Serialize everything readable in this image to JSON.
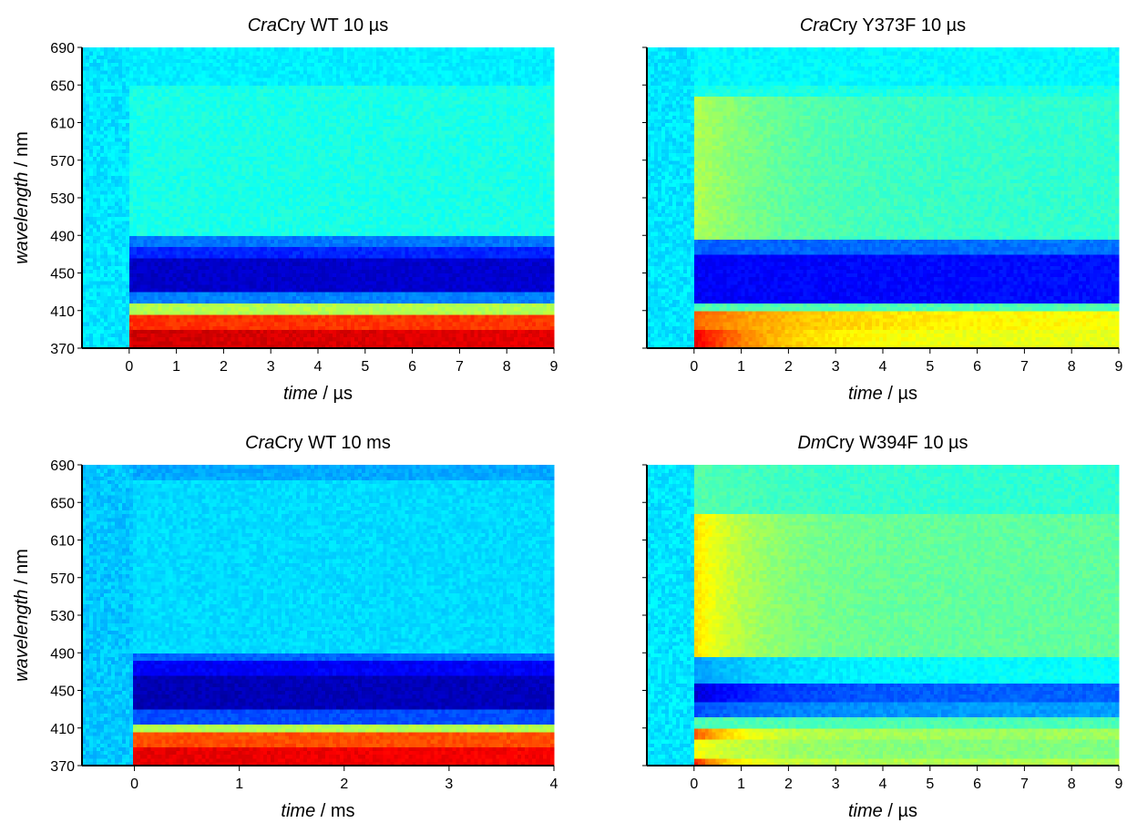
{
  "chart_data": [
    {
      "type": "heatmap",
      "title": {
        "italic": "Cra",
        "rest": "Cry WT 10 µs"
      },
      "xlabel": {
        "italic": "time",
        "rest": " / µs"
      },
      "ylabel": {
        "italic": "wavelength",
        "rest": " / nm"
      },
      "xlim": [
        -1,
        9
      ],
      "ylim": [
        370,
        690
      ],
      "xticks": [
        0,
        1,
        2,
        3,
        4,
        5,
        6,
        7,
        8,
        9
      ],
      "yticks": [
        370,
        410,
        450,
        490,
        530,
        570,
        610,
        650,
        690
      ],
      "show_yaxis_labels": true,
      "colormap": "jet",
      "time_zero": 0,
      "pre_zero_level": 0.35,
      "background_level": 0.4,
      "bands": [
        {
          "from": 370,
          "to": 391,
          "start_level": 0.92,
          "end_level": 0.9,
          "decay": 0
        },
        {
          "from": 391,
          "to": 408,
          "start_level": 0.83,
          "end_level": 0.82,
          "decay": 0
        },
        {
          "from": 408,
          "to": 418,
          "start_level": 0.55,
          "end_level": 0.55,
          "decay": 0
        },
        {
          "from": 418,
          "to": 430,
          "start_level": 0.25,
          "end_level": 0.25,
          "decay": 0
        },
        {
          "from": 430,
          "to": 465,
          "start_level": 0.07,
          "end_level": 0.08,
          "decay": 0
        },
        {
          "from": 465,
          "to": 480,
          "start_level": 0.16,
          "end_level": 0.16,
          "decay": 0
        },
        {
          "from": 480,
          "to": 492,
          "start_level": 0.24,
          "end_level": 0.24,
          "decay": 0
        },
        {
          "from": 650,
          "to": 690,
          "start_level": 0.36,
          "end_level": 0.36,
          "decay": 0
        }
      ]
    },
    {
      "type": "heatmap",
      "title": {
        "italic": "Cra",
        "rest": "Cry Y373F 10 µs"
      },
      "xlabel": {
        "italic": "time",
        "rest": " / µs"
      },
      "ylabel": {
        "italic": "",
        "rest": ""
      },
      "xlim": [
        -1,
        9
      ],
      "ylim": [
        370,
        690
      ],
      "xticks": [
        0,
        1,
        2,
        3,
        4,
        5,
        6,
        7,
        8,
        9
      ],
      "yticks": [
        370,
        410,
        450,
        490,
        530,
        570,
        610,
        650,
        690
      ],
      "show_yaxis_labels": false,
      "colormap": "jet",
      "time_zero": 0,
      "pre_zero_level": 0.35,
      "background_level": 0.4,
      "bands": [
        {
          "from": 370,
          "to": 390,
          "start_level": 0.9,
          "end_level": 0.6,
          "decay": 1.5
        },
        {
          "from": 390,
          "to": 410,
          "start_level": 0.78,
          "end_level": 0.62,
          "decay": 2.5
        },
        {
          "from": 410,
          "to": 420,
          "start_level": 0.45,
          "end_level": 0.45,
          "decay": 0
        },
        {
          "from": 420,
          "to": 470,
          "start_level": 0.12,
          "end_level": 0.14,
          "decay": 0
        },
        {
          "from": 470,
          "to": 487,
          "start_level": 0.22,
          "end_level": 0.24,
          "decay": 0
        },
        {
          "from": 487,
          "to": 640,
          "start_level": 0.55,
          "end_level": 0.42,
          "decay": 2.0
        },
        {
          "from": 650,
          "to": 690,
          "start_level": 0.37,
          "end_level": 0.37,
          "decay": 0
        }
      ]
    },
    {
      "type": "heatmap",
      "title": {
        "italic": "Cra",
        "rest": "Cry WT 10 ms"
      },
      "xlabel": {
        "italic": "time",
        "rest": " / ms"
      },
      "ylabel": {
        "italic": "wavelength",
        "rest": " / nm"
      },
      "xlim": [
        -0.5,
        4
      ],
      "ylim": [
        370,
        690
      ],
      "xticks": [
        0,
        1,
        2,
        3,
        4
      ],
      "yticks": [
        370,
        410,
        450,
        490,
        530,
        570,
        610,
        650,
        690
      ],
      "show_yaxis_labels": true,
      "colormap": "jet",
      "time_zero": 0,
      "pre_zero_level": 0.32,
      "background_level": 0.34,
      "bands": [
        {
          "from": 370,
          "to": 391,
          "start_level": 0.9,
          "end_level": 0.88,
          "decay": 0
        },
        {
          "from": 391,
          "to": 406,
          "start_level": 0.8,
          "end_level": 0.8,
          "decay": 0
        },
        {
          "from": 406,
          "to": 416,
          "start_level": 0.55,
          "end_level": 0.55,
          "decay": 0
        },
        {
          "from": 416,
          "to": 432,
          "start_level": 0.2,
          "end_level": 0.2,
          "decay": 0
        },
        {
          "from": 432,
          "to": 465,
          "start_level": 0.05,
          "end_level": 0.06,
          "decay": 0
        },
        {
          "from": 465,
          "to": 482,
          "start_level": 0.12,
          "end_level": 0.12,
          "decay": 0
        },
        {
          "from": 482,
          "to": 492,
          "start_level": 0.22,
          "end_level": 0.22,
          "decay": 0
        },
        {
          "from": 675,
          "to": 690,
          "start_level": 0.29,
          "end_level": 0.29,
          "decay": 0
        }
      ]
    },
    {
      "type": "heatmap",
      "title": {
        "italic": "Dm",
        "rest": "Cry W394F 10 µs"
      },
      "xlabel": {
        "italic": "time",
        "rest": " / µs"
      },
      "ylabel": {
        "italic": "",
        "rest": ""
      },
      "xlim": [
        -1,
        9
      ],
      "ylim": [
        370,
        690
      ],
      "xticks": [
        0,
        1,
        2,
        3,
        4,
        5,
        6,
        7,
        8,
        9
      ],
      "yticks": [
        370,
        410,
        450,
        490,
        530,
        570,
        610,
        650,
        690
      ],
      "show_yaxis_labels": false,
      "colormap": "jet",
      "time_zero": 0,
      "pre_zero_level": 0.35,
      "background_level": 0.47,
      "bands": [
        {
          "from": 370,
          "to": 378,
          "start_level": 0.85,
          "end_level": 0.55,
          "decay": 0.8
        },
        {
          "from": 378,
          "to": 400,
          "start_level": 0.62,
          "end_level": 0.5,
          "decay": 1.5
        },
        {
          "from": 400,
          "to": 412,
          "start_level": 0.8,
          "end_level": 0.53,
          "decay": 1.0
        },
        {
          "from": 412,
          "to": 422,
          "start_level": 0.45,
          "end_level": 0.45,
          "decay": 0
        },
        {
          "from": 422,
          "to": 440,
          "start_level": 0.2,
          "end_level": 0.28,
          "decay": 2.0
        },
        {
          "from": 440,
          "to": 460,
          "start_level": 0.08,
          "end_level": 0.22,
          "decay": 1.5
        },
        {
          "from": 460,
          "to": 487,
          "start_level": 0.28,
          "end_level": 0.38,
          "decay": 2.0
        },
        {
          "from": 487,
          "to": 640,
          "start_level": 0.66,
          "end_level": 0.47,
          "decay": 1.2
        },
        {
          "from": 640,
          "to": 690,
          "start_level": 0.46,
          "end_level": 0.42,
          "decay": 2.0
        }
      ]
    }
  ]
}
